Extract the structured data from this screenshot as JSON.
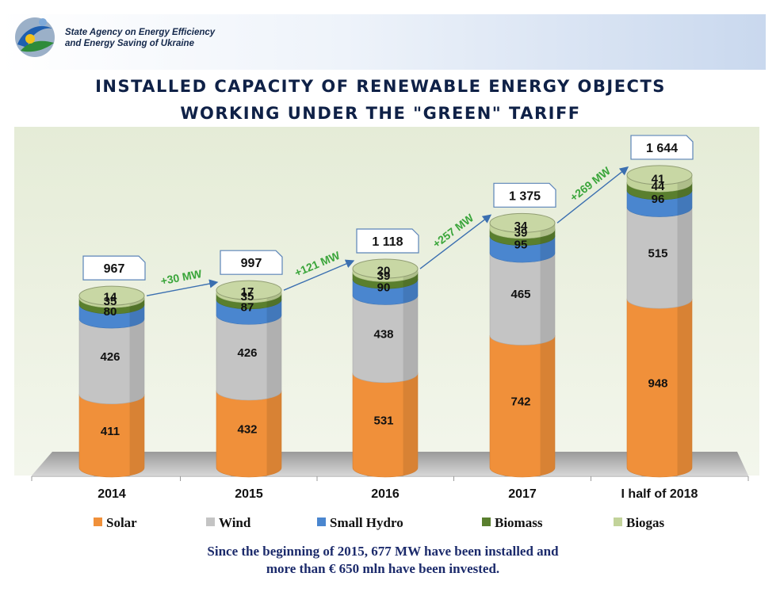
{
  "header": {
    "agency_line1": "State Agency on Energy Efficiency",
    "agency_line2": "and Energy Saving of Ukraine",
    "title_line1": "INSTALLED CAPACITY OF RENEWABLE ENERGY OBJECTS",
    "title_line2": "WORKING UNDER THE \"GREEN\" TARIFF"
  },
  "chart_data": {
    "type": "bar",
    "stacked": true,
    "unit": "MW",
    "categories": [
      "2014",
      "2015",
      "2016",
      "2017",
      "I half of 2018"
    ],
    "series": [
      {
        "name": "Solar",
        "color": "#f0903a",
        "values": [
          411,
          432,
          531,
          742,
          948
        ]
      },
      {
        "name": "Wind",
        "color": "#c4c4c4",
        "values": [
          426,
          426,
          438,
          465,
          515
        ]
      },
      {
        "name": "Small Hydro",
        "color": "#4a86cf",
        "values": [
          80,
          87,
          90,
          95,
          96
        ]
      },
      {
        "name": "Biomass",
        "color": "#5a7f2e",
        "values": [
          35,
          35,
          39,
          39,
          44
        ]
      },
      {
        "name": "Biogas",
        "color": "#c2d39a",
        "values": [
          14,
          17,
          20,
          34,
          41
        ]
      }
    ],
    "totals": [
      "967",
      "997",
      "1 118",
      "1 375",
      "1 644"
    ],
    "growth": [
      "+30 MW",
      "+121 MW",
      "+257 MW",
      "+269 MW"
    ],
    "legend_position": "bottom"
  },
  "footer": {
    "note_line1": "Since the beginning of 2015, 677 MW have been installed and",
    "note_line2": "more than € 650 mln have been invested."
  }
}
